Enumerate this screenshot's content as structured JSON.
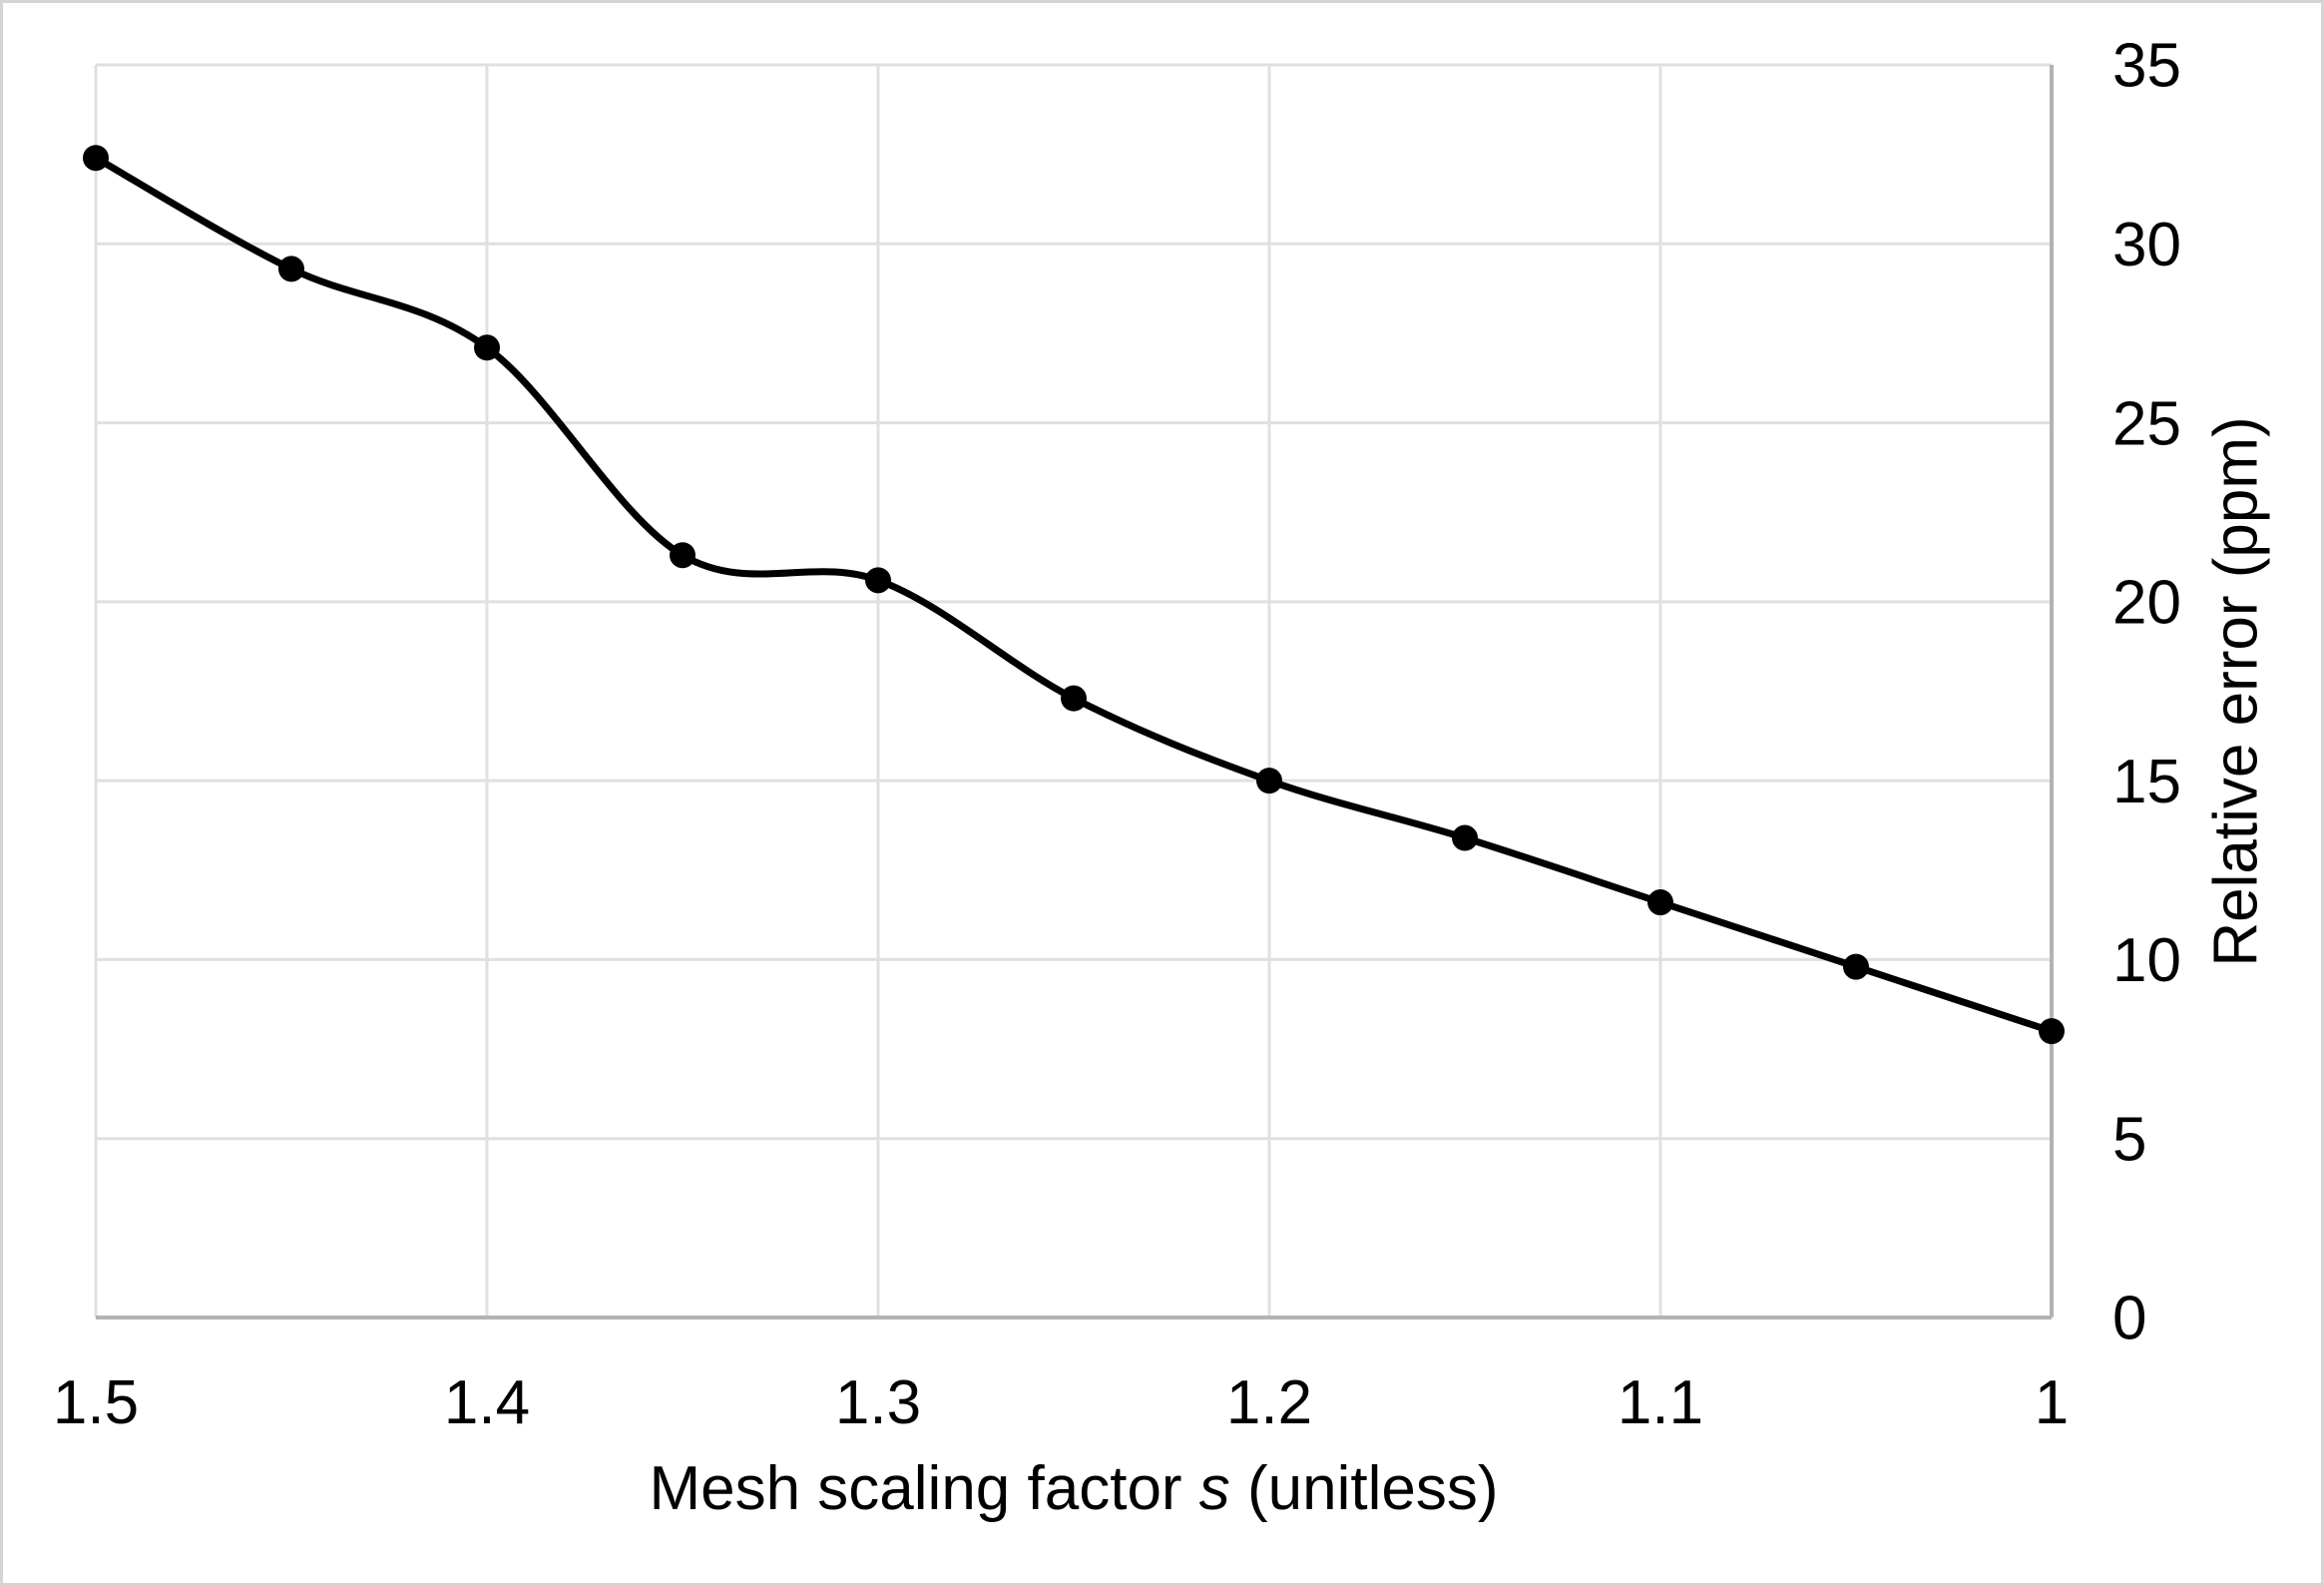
{
  "chart_data": {
    "type": "line",
    "title": "",
    "x": [
      1.5,
      1.45,
      1.4,
      1.35,
      1.3,
      1.25,
      1.2,
      1.15,
      1.1,
      1.05,
      1.0
    ],
    "series": [
      {
        "name": "Relative error",
        "values": [
          32.4,
          29.3,
          27.1,
          21.3,
          20.6,
          17.3,
          15.0,
          13.4,
          11.6,
          9.8,
          8.0
        ]
      }
    ],
    "xlabel": "Mesh scaling factor s (unitless)",
    "xlabel_parts": {
      "prefix": "Mesh scaling factor ",
      "variable": "s",
      "suffix": " (unitless)"
    },
    "ylabel": "Relative error (ppm)",
    "x_axis": {
      "min": 1.0,
      "max": 1.5,
      "reversed": true,
      "tick_values": [
        1.5,
        1.4,
        1.3,
        1.2,
        1.1,
        1.0
      ],
      "tick_labels": [
        "1.5",
        "1.4",
        "1.3",
        "1.2",
        "1.1",
        "1"
      ]
    },
    "y_axis": {
      "min": 0,
      "max": 35,
      "step": 5,
      "side": "right",
      "tick_values": [
        0,
        5,
        10,
        15,
        20,
        25,
        30,
        35
      ],
      "tick_labels": [
        "0",
        "5",
        "10",
        "15",
        "20",
        "25",
        "30",
        "35"
      ]
    },
    "grid": true,
    "smooth": true,
    "marker": "circle",
    "legend": "none"
  },
  "style": {
    "line_color": "#000000",
    "marker_color": "#000000",
    "grid_color": "#e0e0e0",
    "axis_line_color": "#b3b3b3",
    "background": "#ffffff",
    "frame_border_color": "#d4d4d4",
    "text_color": "#000000"
  }
}
